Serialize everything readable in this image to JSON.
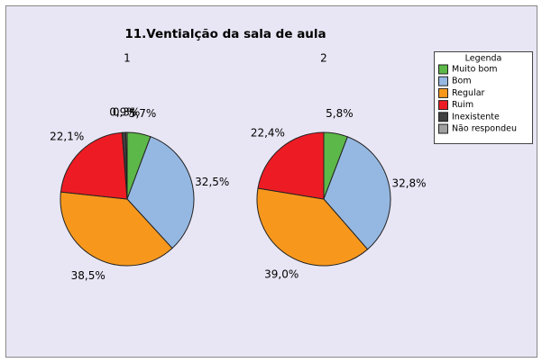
{
  "title": "11.Ventialção da sala de aula",
  "legend_title": "Legenda",
  "chart_data": [
    {
      "type": "pie",
      "title": "1",
      "categories": [
        "Muito bom",
        "Bom",
        "Regular",
        "Ruim",
        "Inexistente",
        "Não respondeu"
      ],
      "values": [
        5.7,
        32.5,
        38.5,
        22.1,
        0.9,
        0.3
      ],
      "value_labels": [
        "5,7%",
        "32,5%",
        "38,5%",
        "22,1%",
        "0,9%",
        "0,3%"
      ],
      "colors": [
        "#5cb848",
        "#95b8e2",
        "#f7981d",
        "#ed1c24",
        "#404040",
        "#a0a0a0"
      ]
    },
    {
      "type": "pie",
      "title": "2",
      "categories": [
        "Muito bom",
        "Bom",
        "Regular",
        "Ruim",
        "Inexistente",
        "Não respondeu"
      ],
      "values": [
        5.8,
        32.8,
        39.0,
        22.4,
        0,
        0
      ],
      "value_labels": [
        "5,8%",
        "32,8%",
        "39,0%",
        "22,4%",
        null,
        null
      ],
      "colors": [
        "#5cb848",
        "#95b8e2",
        "#f7981d",
        "#ed1c24",
        "#404040",
        "#a0a0a0"
      ]
    }
  ]
}
